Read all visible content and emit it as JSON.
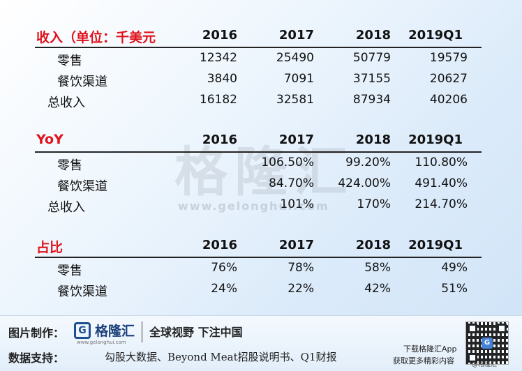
{
  "watermark": {
    "text": "格隆汇",
    "url": "www.gelonghui.com"
  },
  "columns": [
    "2016",
    "2017",
    "2018",
    "2019Q1"
  ],
  "revenue": {
    "title": "收入（单位：千美元",
    "rows": [
      {
        "label": "零售",
        "values": [
          "12342",
          "25490",
          "50779",
          "19579"
        ]
      },
      {
        "label": "餐饮渠道",
        "values": [
          "3840",
          "7091",
          "37155",
          "20627"
        ]
      },
      {
        "label": "总收入",
        "values": [
          "16182",
          "32581",
          "87934",
          "40206"
        ]
      }
    ]
  },
  "yoy": {
    "title": "YoY",
    "rows": [
      {
        "label": "零售",
        "values": [
          "",
          "106.50%",
          "99.20%",
          "110.80%"
        ]
      },
      {
        "label": "餐饮渠道",
        "values": [
          "",
          "84.70%",
          "424.00%",
          "491.40%"
        ]
      },
      {
        "label": "总收入",
        "values": [
          "",
          "101%",
          "170%",
          "214.70%"
        ]
      }
    ]
  },
  "share": {
    "title": "占比",
    "rows": [
      {
        "label": "零售",
        "values": [
          "76%",
          "78%",
          "58%",
          "49%"
        ]
      },
      {
        "label": "餐饮渠道",
        "values": [
          "24%",
          "22%",
          "42%",
          "51%"
        ]
      }
    ]
  },
  "footer": {
    "made_by_label": "图片制作：",
    "logo_text": "格隆汇",
    "logo_sub": "www.gelonghui.com",
    "slogan": "全球视野 下注中国",
    "source_label": "数据支持：",
    "source_text": "勾股大数据、Beyond Meat招股说明书、Q1财报",
    "download_line1": "下载格隆汇App",
    "download_line2": "获取更多精彩内容",
    "qr_caption": "@格隆汇"
  }
}
